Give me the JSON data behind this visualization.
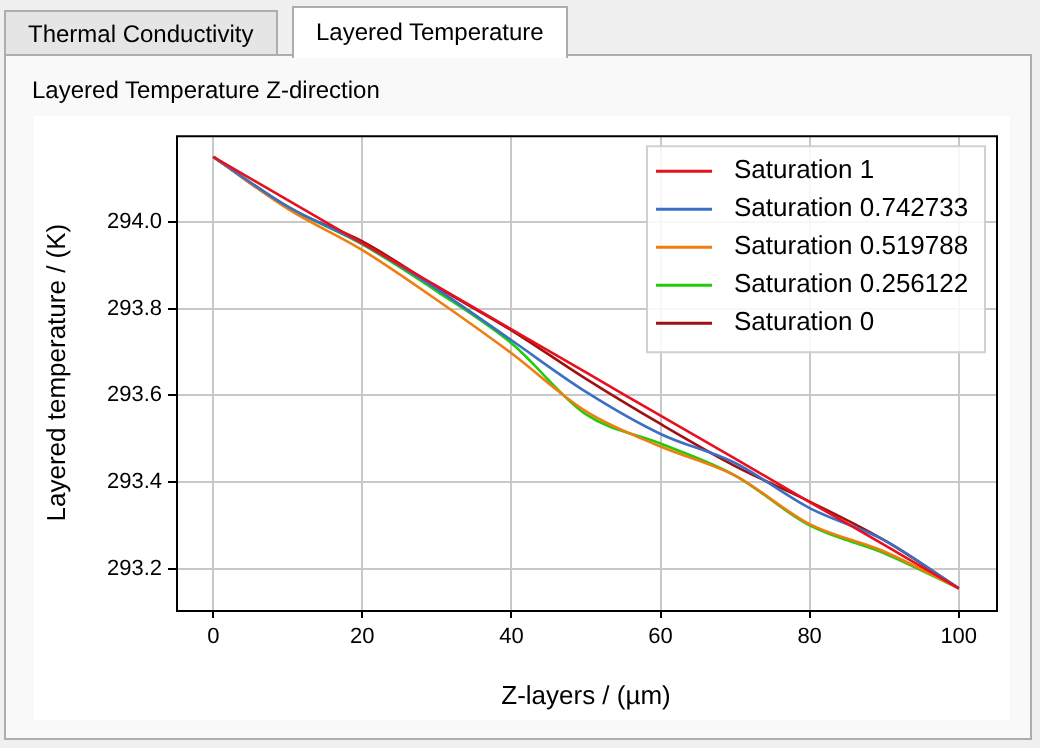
{
  "chart_data": {
    "type": "line",
    "title": "Layered Temperature Z-direction",
    "xlabel": "Z-layers / (µm)",
    "ylabel": "Layered temperature / (K)",
    "annotations": [
      "Thermal Conductivity",
      "Layered Temperature"
    ],
    "x": [
      0,
      10,
      20,
      30,
      40,
      50,
      60,
      70,
      80,
      90,
      100
    ],
    "series": [
      {
        "name": "Saturation 1",
        "color": "#e8101e",
        "values": [
          294.15,
          294.05,
          293.951,
          293.852,
          293.752,
          293.653,
          293.553,
          293.454,
          293.354,
          293.255,
          293.155
        ]
      },
      {
        "name": "Saturation 0.742733",
        "color": "#3b6fc4",
        "values": [
          294.15,
          294.035,
          293.95,
          293.845,
          293.727,
          293.608,
          293.511,
          293.444,
          293.34,
          293.266,
          293.155
        ]
      },
      {
        "name": "Saturation 0.519788",
        "color": "#f07d10",
        "values": [
          294.15,
          294.03,
          293.935,
          293.82,
          293.697,
          293.563,
          293.482,
          293.415,
          293.303,
          293.24,
          293.155
        ]
      },
      {
        "name": "Saturation 0.256122",
        "color": "#22cc0a",
        "values": [
          294.15,
          294.035,
          293.948,
          293.84,
          293.72,
          293.556,
          293.489,
          293.415,
          293.3,
          293.236,
          293.155
        ]
      },
      {
        "name": "Saturation 0",
        "color": "#a01010",
        "values": [
          294.15,
          294.033,
          293.955,
          293.85,
          293.75,
          293.638,
          293.534,
          293.437,
          293.355,
          293.266,
          293.155
        ]
      }
    ],
    "xlim": [
      -5,
      105
    ],
    "xticks": [
      0,
      20,
      40,
      60,
      80,
      100
    ],
    "ylim": [
      293.105,
      294.2
    ],
    "yticks": [
      {
        "value": 293.2,
        "label": "293.2"
      },
      {
        "value": 293.4,
        "label": "293.4"
      },
      {
        "value": 293.6,
        "label": "293.6"
      },
      {
        "value": 293.8,
        "label": "293.8"
      },
      {
        "value": 294.0,
        "label": "294.0"
      }
    ],
    "grid": true,
    "legend": "top right",
    "marker": "none",
    "line_style": "solid"
  }
}
